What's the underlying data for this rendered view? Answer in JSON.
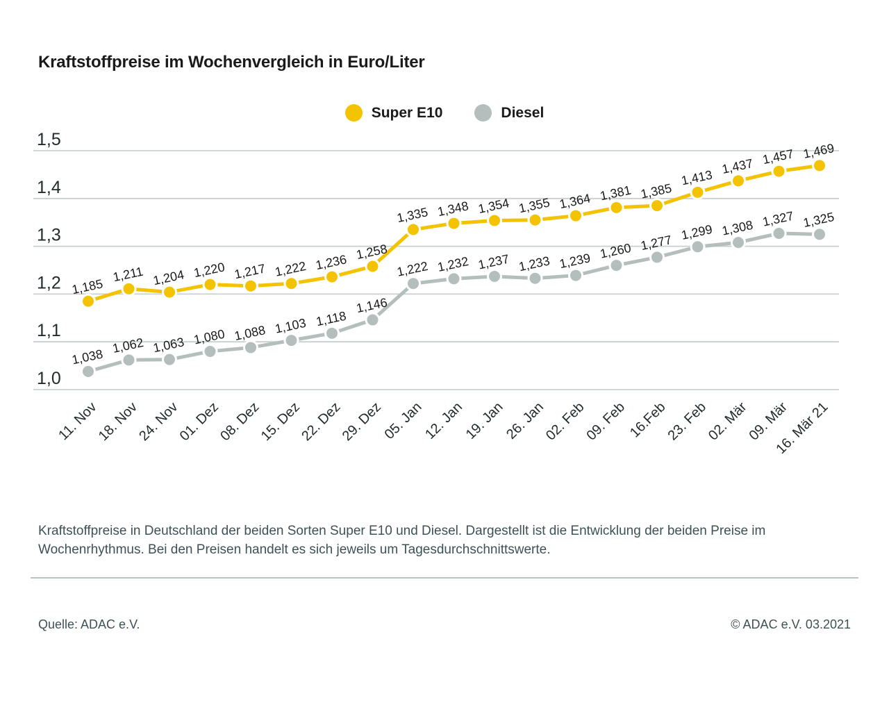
{
  "title": "Kraftstoffpreise im Wochenvergleich in Euro/Liter",
  "caption": "Kraftstoffpreise in Deutschland der beiden Sorten Super E10 und Diesel. Dargestellt ist die Entwicklung der beiden Preise im Wochenrhythmus. Bei den Preisen handelt es sich jeweils um Tagesdurchschnittswerte.",
  "footer": {
    "source": "Quelle: ADAC e.V.",
    "copyright": "© ADAC e.V. 03.2021"
  },
  "colors": {
    "super_e10": "#F3C300",
    "diesel": "#B4BEBC",
    "gridline": "#C9CFCF",
    "data_label": "#1a1a1a",
    "axis_label": "#222b2e",
    "text_muted": "#3e5156"
  },
  "chart_data": {
    "type": "line",
    "title": "Kraftstoffpreise im Wochenvergleich in Euro/Liter",
    "xlabel": "",
    "ylabel": "Euro/Liter",
    "grid": true,
    "legend_position": "top-center",
    "ylim": [
      1.0,
      1.5
    ],
    "yticks": [
      {
        "value": 1.0,
        "label": "1,0"
      },
      {
        "value": 1.1,
        "label": "1,1"
      },
      {
        "value": 1.2,
        "label": "1,2"
      },
      {
        "value": 1.3,
        "label": "1,3"
      },
      {
        "value": 1.4,
        "label": "1,4"
      },
      {
        "value": 1.5,
        "label": "1,5"
      }
    ],
    "x": [
      "11. Nov",
      "18. Nov",
      "24. Nov",
      "01. Dez",
      "08. Dez",
      "15. Dez",
      "22. Dez",
      "29. Dez",
      "05. Jan",
      "12. Jan",
      "19. Jan",
      "26. Jan",
      "02. Feb",
      "09. Feb",
      "16.Feb",
      "23. Feb",
      "02. Mär",
      "09. Mär",
      "16. Mär 21"
    ],
    "series": [
      {
        "name": "Super E10",
        "color": "#F3C300",
        "values": [
          1.185,
          1.211,
          1.204,
          1.22,
          1.217,
          1.222,
          1.236,
          1.258,
          1.335,
          1.348,
          1.354,
          1.355,
          1.364,
          1.381,
          1.385,
          1.413,
          1.437,
          1.457,
          1.469
        ]
      },
      {
        "name": "Diesel",
        "color": "#B4BEBC",
        "values": [
          1.038,
          1.062,
          1.063,
          1.08,
          1.088,
          1.103,
          1.118,
          1.146,
          1.222,
          1.232,
          1.237,
          1.233,
          1.239,
          1.26,
          1.277,
          1.299,
          1.308,
          1.327,
          1.325
        ]
      }
    ]
  }
}
